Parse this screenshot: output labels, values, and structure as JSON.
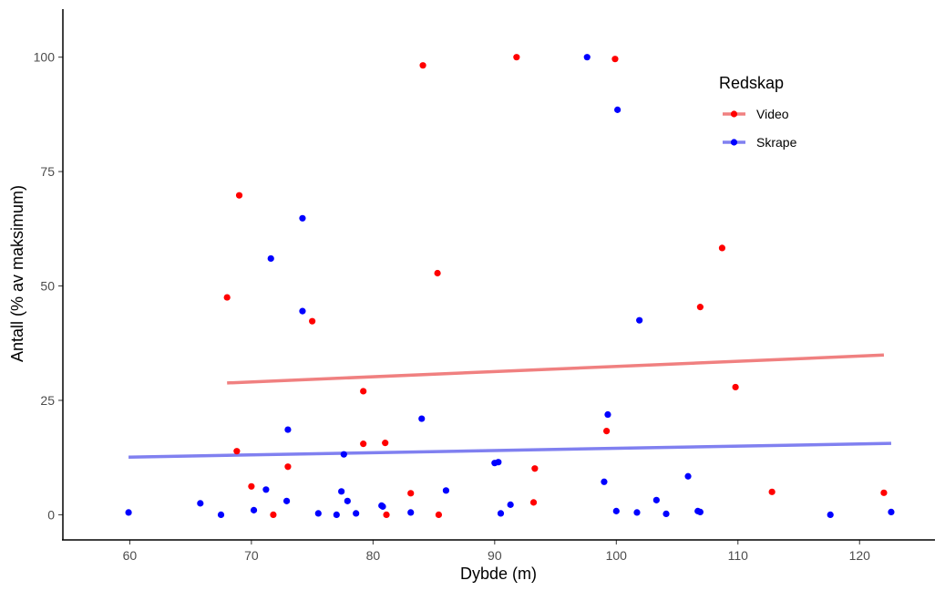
{
  "chart_data": {
    "type": "scatter",
    "xlabel": "Dybde (m)",
    "ylabel": "Antall (% av maksimum)",
    "xlim": [
      54.5,
      126.2
    ],
    "ylim": [
      -5.5,
      110.5
    ],
    "xticks": [
      60,
      70,
      80,
      90,
      100,
      110,
      120
    ],
    "yticks": [
      0,
      25,
      50,
      75,
      100
    ],
    "grid": false,
    "legend": {
      "title": "Redskap",
      "position": "top-right"
    },
    "series": [
      {
        "name": "Video",
        "color": "#ff0000",
        "trend_color": "#f08080",
        "points": [
          [
            68.0,
            47.5
          ],
          [
            68.8,
            13.9
          ],
          [
            69.0,
            69.8
          ],
          [
            70.0,
            6.2
          ],
          [
            71.8,
            0.0
          ],
          [
            73.0,
            10.5
          ],
          [
            75.0,
            42.3
          ],
          [
            79.2,
            27.0
          ],
          [
            79.2,
            15.5
          ],
          [
            81.0,
            15.7
          ],
          [
            81.1,
            0.0
          ],
          [
            83.1,
            4.7
          ],
          [
            84.1,
            98.2
          ],
          [
            85.3,
            52.8
          ],
          [
            85.4,
            0.0
          ],
          [
            91.8,
            100.0
          ],
          [
            93.2,
            2.7
          ],
          [
            93.3,
            10.1
          ],
          [
            99.2,
            18.3
          ],
          [
            99.9,
            99.6
          ],
          [
            106.9,
            45.4
          ],
          [
            108.7,
            58.3
          ],
          [
            109.8,
            27.9
          ],
          [
            112.8,
            5.0
          ],
          [
            122.0,
            4.8
          ]
        ],
        "trend": {
          "x": [
            68.0,
            122.0
          ],
          "y": [
            28.8,
            34.9
          ]
        }
      },
      {
        "name": "Skrape",
        "color": "#0000ff",
        "trend_color": "#8080f0",
        "points": [
          [
            59.9,
            0.5
          ],
          [
            65.8,
            2.5
          ],
          [
            67.5,
            0.0
          ],
          [
            70.2,
            1.0
          ],
          [
            71.2,
            5.5
          ],
          [
            71.6,
            56.0
          ],
          [
            72.9,
            3.0
          ],
          [
            73.0,
            18.6
          ],
          [
            74.2,
            64.8
          ],
          [
            74.2,
            44.5
          ],
          [
            75.5,
            0.3
          ],
          [
            77.0,
            0.0
          ],
          [
            77.4,
            5.1
          ],
          [
            77.6,
            13.2
          ],
          [
            77.9,
            3.0
          ],
          [
            78.6,
            0.3
          ],
          [
            80.7,
            2.0
          ],
          [
            80.8,
            1.8
          ],
          [
            83.1,
            0.5
          ],
          [
            84.0,
            21.0
          ],
          [
            86.0,
            5.3
          ],
          [
            90.0,
            11.3
          ],
          [
            90.3,
            11.5
          ],
          [
            90.5,
            0.3
          ],
          [
            91.3,
            2.2
          ],
          [
            97.6,
            100.0
          ],
          [
            99.0,
            7.2
          ],
          [
            99.3,
            21.9
          ],
          [
            100.0,
            0.8
          ],
          [
            100.1,
            88.5
          ],
          [
            101.7,
            0.5
          ],
          [
            101.9,
            42.5
          ],
          [
            103.3,
            3.2
          ],
          [
            104.1,
            0.2
          ],
          [
            105.9,
            8.4
          ],
          [
            106.7,
            0.8
          ],
          [
            106.9,
            0.6
          ],
          [
            117.6,
            0.0
          ],
          [
            122.6,
            0.6
          ]
        ],
        "trend": {
          "x": [
            59.9,
            122.6
          ],
          "y": [
            12.6,
            15.6
          ]
        }
      }
    ]
  }
}
